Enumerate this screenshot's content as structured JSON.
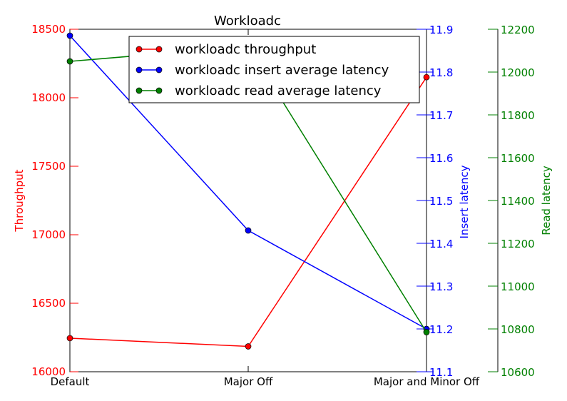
{
  "chart_data": {
    "type": "line",
    "title": "Workloadc",
    "categories": [
      "Default",
      "Major Off",
      "Major and Minor Off"
    ],
    "legend_position": "top-right",
    "axes": {
      "left": {
        "label": "Throughput",
        "color": "#ff0000",
        "ylim": [
          16000,
          18500
        ],
        "ticks": [
          "16000",
          "16500",
          "17000",
          "17500",
          "18000",
          "18500"
        ]
      },
      "right1": {
        "label": "Insert latency",
        "color": "#0000ff",
        "ylim": [
          11.1,
          11.9
        ],
        "ticks": [
          "11.1",
          "11.2",
          "11.3",
          "11.4",
          "11.5",
          "11.6",
          "11.7",
          "11.8",
          "11.9"
        ]
      },
      "right2": {
        "label": "Read latency",
        "color": "#008000",
        "ylim": [
          10600,
          12200
        ],
        "ticks": [
          "10600",
          "10800",
          "11000",
          "11200",
          "11400",
          "11600",
          "11800",
          "12000",
          "12200"
        ]
      }
    },
    "series": [
      {
        "name": "workloadc throughput",
        "axis": "left",
        "color": "#ff0000",
        "values": [
          16245,
          16185,
          18150
        ]
      },
      {
        "name": "workloadc insert average latency",
        "axis": "right1",
        "color": "#0000ff",
        "values": [
          11.885,
          11.43,
          11.2
        ]
      },
      {
        "name": "workloadc read average latency",
        "axis": "right2",
        "color": "#008000",
        "values": [
          12050,
          12120,
          10785
        ]
      }
    ]
  }
}
